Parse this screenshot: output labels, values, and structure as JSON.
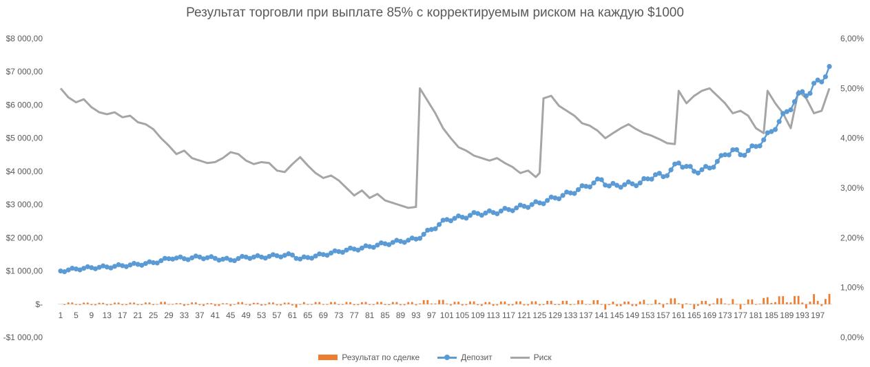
{
  "chart_data": {
    "type": "combo",
    "title": "Результат торговли при выплате 85% с корректируемым риском на каждую $1000",
    "left_axis": {
      "ylim": [
        -1000,
        8000
      ],
      "ticks": [
        -1000,
        0,
        1000,
        2000,
        3000,
        4000,
        5000,
        6000,
        7000,
        8000
      ],
      "tick_labels": [
        "-$1 000,00",
        "$-",
        "$1 000,00",
        "$2 000,00",
        "$3 000,00",
        "$4 000,00",
        "$5 000,00",
        "$6 000,00",
        "$7 000,00",
        "$8 000,00"
      ]
    },
    "right_axis": {
      "ylim": [
        0,
        6
      ],
      "ticks": [
        0,
        1,
        2,
        3,
        4,
        5,
        6
      ],
      "tick_labels": [
        "0,00%",
        "1,00%",
        "2,00%",
        "3,00%",
        "4,00%",
        "5,00%",
        "6,00%"
      ]
    },
    "x_axis": {
      "count": 200,
      "tick_labels": [
        "1",
        "5",
        "9",
        "13",
        "17",
        "21",
        "25",
        "29",
        "33",
        "37",
        "41",
        "45",
        "49",
        "53",
        "57",
        "61",
        "65",
        "69",
        "73",
        "77",
        "81",
        "85",
        "89",
        "93",
        "97",
        "101",
        "105",
        "109",
        "113",
        "117",
        "121",
        "125",
        "129",
        "133",
        "137",
        "141",
        "145",
        "149",
        "153",
        "157",
        "161",
        "165",
        "169",
        "173",
        "177",
        "181",
        "185",
        "189",
        "193",
        "197"
      ]
    },
    "deposit_anchors": [
      [
        1,
        1000
      ],
      [
        5,
        1060
      ],
      [
        9,
        1100
      ],
      [
        13,
        1120
      ],
      [
        17,
        1160
      ],
      [
        21,
        1200
      ],
      [
        25,
        1250
      ],
      [
        30,
        1400
      ],
      [
        33,
        1370
      ],
      [
        37,
        1420
      ],
      [
        41,
        1380
      ],
      [
        45,
        1330
      ],
      [
        49,
        1420
      ],
      [
        53,
        1420
      ],
      [
        57,
        1460
      ],
      [
        61,
        1480
      ],
      [
        63,
        1360
      ],
      [
        67,
        1450
      ],
      [
        71,
        1540
      ],
      [
        75,
        1630
      ],
      [
        79,
        1690
      ],
      [
        83,
        1780
      ],
      [
        87,
        1860
      ],
      [
        93,
        1960
      ],
      [
        97,
        2250
      ],
      [
        101,
        2550
      ],
      [
        105,
        2620
      ],
      [
        109,
        2730
      ],
      [
        113,
        2760
      ],
      [
        117,
        2850
      ],
      [
        121,
        2950
      ],
      [
        125,
        3050
      ],
      [
        129,
        3200
      ],
      [
        133,
        3350
      ],
      [
        137,
        3550
      ],
      [
        141,
        3750
      ],
      [
        143,
        3560
      ],
      [
        147,
        3600
      ],
      [
        151,
        3650
      ],
      [
        155,
        3900
      ],
      [
        157,
        3840
      ],
      [
        161,
        4250
      ],
      [
        163,
        4150
      ],
      [
        165,
        4000
      ],
      [
        169,
        4100
      ],
      [
        173,
        4500
      ],
      [
        175,
        4650
      ],
      [
        177,
        4500
      ],
      [
        181,
        4750
      ],
      [
        183,
        4950
      ],
      [
        185,
        5200
      ],
      [
        189,
        5800
      ],
      [
        191,
        6100
      ],
      [
        193,
        6400
      ],
      [
        195,
        6350
      ],
      [
        197,
        6750
      ],
      [
        199,
        6850
      ],
      [
        200,
        7050
      ]
    ],
    "risk_anchors": [
      [
        1,
        5.0
      ],
      [
        3,
        4.82
      ],
      [
        5,
        4.72
      ],
      [
        7,
        4.78
      ],
      [
        9,
        4.62
      ],
      [
        11,
        4.52
      ],
      [
        13,
        4.48
      ],
      [
        15,
        4.52
      ],
      [
        17,
        4.42
      ],
      [
        19,
        4.45
      ],
      [
        21,
        4.32
      ],
      [
        23,
        4.28
      ],
      [
        25,
        4.18
      ],
      [
        27,
        4.0
      ],
      [
        29,
        3.85
      ],
      [
        31,
        3.68
      ],
      [
        33,
        3.75
      ],
      [
        35,
        3.6
      ],
      [
        37,
        3.55
      ],
      [
        39,
        3.5
      ],
      [
        41,
        3.52
      ],
      [
        43,
        3.6
      ],
      [
        45,
        3.72
      ],
      [
        47,
        3.68
      ],
      [
        49,
        3.55
      ],
      [
        51,
        3.48
      ],
      [
        53,
        3.52
      ],
      [
        55,
        3.5
      ],
      [
        57,
        3.35
      ],
      [
        59,
        3.32
      ],
      [
        61,
        3.48
      ],
      [
        63,
        3.62
      ],
      [
        65,
        3.45
      ],
      [
        67,
        3.3
      ],
      [
        69,
        3.2
      ],
      [
        71,
        3.25
      ],
      [
        73,
        3.15
      ],
      [
        75,
        3.0
      ],
      [
        77,
        2.85
      ],
      [
        79,
        2.95
      ],
      [
        81,
        2.8
      ],
      [
        83,
        2.88
      ],
      [
        85,
        2.75
      ],
      [
        87,
        2.7
      ],
      [
        89,
        2.65
      ],
      [
        91,
        2.6
      ],
      [
        93,
        2.62
      ],
      [
        94,
        5.0
      ],
      [
        96,
        4.75
      ],
      [
        98,
        4.5
      ],
      [
        100,
        4.2
      ],
      [
        102,
        4.0
      ],
      [
        104,
        3.82
      ],
      [
        106,
        3.75
      ],
      [
        108,
        3.65
      ],
      [
        110,
        3.6
      ],
      [
        112,
        3.55
      ],
      [
        114,
        3.6
      ],
      [
        116,
        3.5
      ],
      [
        118,
        3.42
      ],
      [
        120,
        3.3
      ],
      [
        122,
        3.35
      ],
      [
        124,
        3.22
      ],
      [
        125,
        3.3
      ],
      [
        126,
        4.8
      ],
      [
        128,
        4.85
      ],
      [
        130,
        4.65
      ],
      [
        132,
        4.55
      ],
      [
        134,
        4.45
      ],
      [
        136,
        4.3
      ],
      [
        138,
        4.25
      ],
      [
        140,
        4.15
      ],
      [
        142,
        4.0
      ],
      [
        144,
        4.1
      ],
      [
        146,
        4.2
      ],
      [
        148,
        4.28
      ],
      [
        150,
        4.18
      ],
      [
        152,
        4.1
      ],
      [
        154,
        4.05
      ],
      [
        156,
        3.98
      ],
      [
        158,
        3.9
      ],
      [
        160,
        3.88
      ],
      [
        161,
        4.95
      ],
      [
        163,
        4.7
      ],
      [
        165,
        4.85
      ],
      [
        167,
        4.95
      ],
      [
        169,
        5.0
      ],
      [
        171,
        4.85
      ],
      [
        173,
        4.7
      ],
      [
        175,
        4.5
      ],
      [
        177,
        4.55
      ],
      [
        179,
        4.45
      ],
      [
        181,
        4.2
      ],
      [
        183,
        4.1
      ],
      [
        184,
        4.95
      ],
      [
        186,
        4.7
      ],
      [
        188,
        4.5
      ],
      [
        190,
        4.2
      ],
      [
        192,
        4.95
      ],
      [
        194,
        4.8
      ],
      [
        196,
        4.5
      ],
      [
        198,
        4.55
      ],
      [
        200,
        5.0
      ]
    ],
    "series": [
      {
        "name": "Результат по сделке",
        "kind": "bar",
        "axis": "left",
        "color": "#ED7D31"
      },
      {
        "name": "Депозит",
        "kind": "line-markers",
        "axis": "left",
        "color": "#5B9BD5"
      },
      {
        "name": "Риск",
        "kind": "line",
        "axis": "right",
        "color": "#A5A5A5"
      }
    ],
    "legend_position": "bottom",
    "grid": false
  }
}
